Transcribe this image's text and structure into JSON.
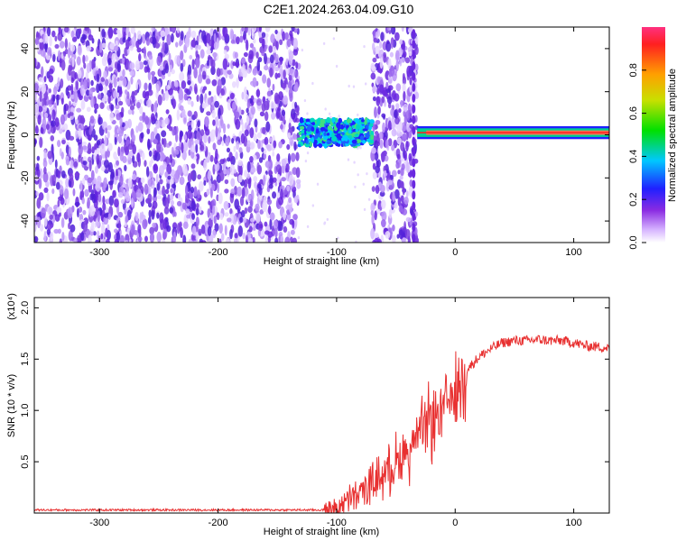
{
  "title": "C2E1.2024.263.04.09.G10",
  "chart_data": [
    {
      "type": "heatmap",
      "xlabel": "Height of straight line (km)",
      "ylabel": "Frequency (Hz)",
      "xlim": [
        -355,
        130
      ],
      "ylim": [
        -50,
        50
      ],
      "xticks": [
        -300,
        -200,
        -100,
        0,
        100
      ],
      "xtick_labels": [
        "-300",
        "-200",
        "-100",
        "0",
        "100"
      ],
      "yticks": [
        -40,
        -20,
        0,
        20,
        40
      ],
      "ytick_labels": [
        "-40",
        "-20",
        "0",
        "20",
        "40"
      ],
      "colorbar": {
        "label": "Normalized spectral amplitude",
        "range": [
          0,
          1
        ],
        "ticks": [
          0.0,
          0.2,
          0.4,
          0.6,
          0.8
        ],
        "tick_labels": [
          "0.0",
          "0.2",
          "0.4",
          "0.6",
          "0.8"
        ]
      },
      "regions": [
        {
          "x": [
            -355,
            -132
          ],
          "freq": [
            -50,
            50
          ],
          "amplitude": "low noise"
        },
        {
          "x": [
            -132,
            -70
          ],
          "freq": [
            -5,
            7
          ],
          "amplitude": "medium"
        },
        {
          "x": [
            -70,
            -32
          ],
          "freq": [
            -50,
            50
          ],
          "amplitude": "low noise"
        },
        {
          "x": [
            -32,
            130
          ],
          "freq": [
            0,
            3
          ],
          "amplitude": "high"
        }
      ]
    },
    {
      "type": "line",
      "xlabel": "Height of straight line (km)",
      "ylabel": "SNR (10 * v/v)",
      "y_multiplier": "(x10⁴)",
      "xlim": [
        -355,
        130
      ],
      "ylim": [
        0,
        2.1
      ],
      "xticks": [
        -300,
        -200,
        -100,
        0,
        100
      ],
      "xtick_labels": [
        "-300",
        "-200",
        "-100",
        "0",
        "100"
      ],
      "yticks": [
        0.5,
        1.0,
        1.5,
        2.0
      ],
      "ytick_labels": [
        "0.5",
        "1.0",
        "1.5",
        "2.0"
      ],
      "series": [
        {
          "color": "#e83030",
          "x": [
            -355,
            -300,
            -250,
            -200,
            -150,
            -110,
            -100,
            -90,
            -80,
            -70,
            -60,
            -50,
            -40,
            -30,
            -20,
            -10,
            0,
            10,
            20,
            30,
            40,
            50,
            60,
            70,
            80,
            90,
            100,
            110,
            120,
            130
          ],
          "y": [
            0.03,
            0.03,
            0.03,
            0.03,
            0.03,
            0.03,
            0.05,
            0.12,
            0.2,
            0.28,
            0.4,
            0.5,
            0.62,
            0.75,
            0.9,
            1.0,
            1.2,
            1.4,
            1.52,
            1.6,
            1.66,
            1.68,
            1.68,
            1.69,
            1.68,
            1.68,
            1.66,
            1.63,
            1.62,
            1.61
          ]
        }
      ]
    }
  ]
}
